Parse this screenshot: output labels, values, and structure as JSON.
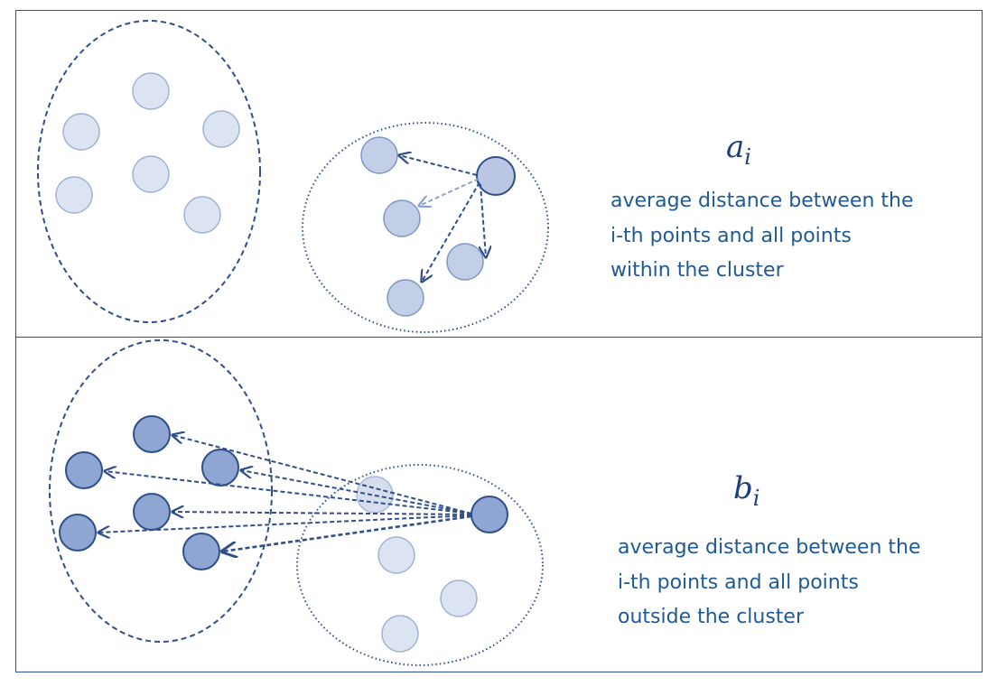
{
  "top_panel": {
    "symbol": {
      "base": "a",
      "sub": "i"
    },
    "description_lines": [
      "average distance between the",
      "i-th points and all points",
      "within the cluster"
    ]
  },
  "bottom_panel": {
    "symbol": {
      "base": "b",
      "sub": "i"
    },
    "description_lines": [
      "average distance between the",
      "i-th points and all points",
      "outside the cluster"
    ]
  },
  "colors": {
    "frame": "#2f4f9a",
    "cluster_outline": "#2f4f8a",
    "point_light_fill": "#dde4f1",
    "point_light_stroke": "#9fb2d6",
    "point_mid_fill": "#b9c7e2",
    "point_dark_fill": "#8fa6d2",
    "point_dark_stroke": "#2f4f8a",
    "arrow": "#2f4f8a",
    "text": "#1f5a96"
  }
}
